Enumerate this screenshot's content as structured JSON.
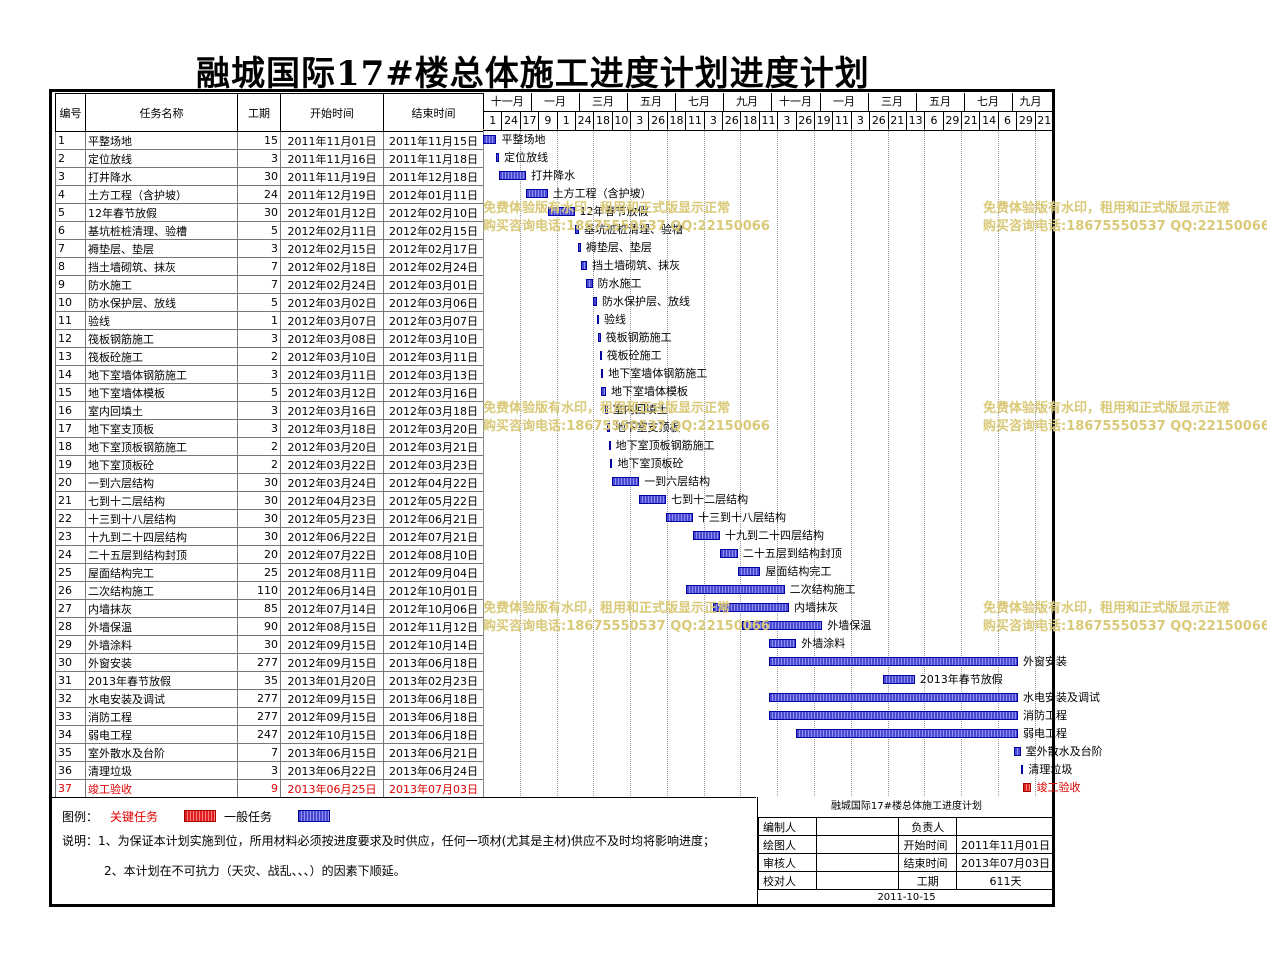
{
  "title": "融城国际17#楼总体施工进度计划进度计划",
  "headers": {
    "no": "编号",
    "name": "任务名称",
    "dur": "工期",
    "start": "开始时间",
    "end": "结束时间"
  },
  "months": [
    "十一月",
    "一月",
    "三月",
    "五月",
    "七月",
    "九月",
    "十一月",
    "一月",
    "三月",
    "五月",
    "七月",
    "九月"
  ],
  "days": [
    "1",
    "24",
    "17",
    "9",
    "1",
    "24",
    "18",
    "10",
    "3",
    "26",
    "18",
    "11",
    "3",
    "26",
    "18",
    "11",
    "3",
    "26",
    "19",
    "11",
    "3",
    "26",
    "21",
    "13",
    "6",
    "29",
    "21",
    "14",
    "6",
    "29",
    "21"
  ],
  "tasks": [
    {
      "no": "1",
      "name": "平整场地",
      "dur": "15",
      "start": "2011年11月01日",
      "end": "2011年11月15日",
      "crit": false
    },
    {
      "no": "2",
      "name": "定位放线",
      "dur": "3",
      "start": "2011年11月16日",
      "end": "2011年11月18日",
      "crit": false
    },
    {
      "no": "3",
      "name": "打井降水",
      "dur": "30",
      "start": "2011年11月19日",
      "end": "2011年12月18日",
      "crit": false
    },
    {
      "no": "4",
      "name": "土方工程（含护坡）",
      "dur": "24",
      "start": "2011年12月19日",
      "end": "2012年01月11日",
      "crit": false
    },
    {
      "no": "5",
      "name": "12年春节放假",
      "dur": "30",
      "start": "2012年01月12日",
      "end": "2012年02月10日",
      "crit": false
    },
    {
      "no": "6",
      "name": "基坑桩桩清理、验槽",
      "dur": "5",
      "start": "2012年02月11日",
      "end": "2012年02月15日",
      "crit": false
    },
    {
      "no": "7",
      "name": "褥垫层、垫层",
      "dur": "3",
      "start": "2012年02月15日",
      "end": "2012年02月17日",
      "crit": false
    },
    {
      "no": "8",
      "name": "挡土墙砌筑、抹灰",
      "dur": "7",
      "start": "2012年02月18日",
      "end": "2012年02月24日",
      "crit": false
    },
    {
      "no": "9",
      "name": "防水施工",
      "dur": "7",
      "start": "2012年02月24日",
      "end": "2012年03月01日",
      "crit": false
    },
    {
      "no": "10",
      "name": "防水保护层、放线",
      "dur": "5",
      "start": "2012年03月02日",
      "end": "2012年03月06日",
      "crit": false
    },
    {
      "no": "11",
      "name": "验线",
      "dur": "1",
      "start": "2012年03月07日",
      "end": "2012年03月07日",
      "crit": false
    },
    {
      "no": "12",
      "name": "筏板钢筋施工",
      "dur": "3",
      "start": "2012年03月08日",
      "end": "2012年03月10日",
      "crit": false
    },
    {
      "no": "13",
      "name": "筏板砼施工",
      "dur": "2",
      "start": "2012年03月10日",
      "end": "2012年03月11日",
      "crit": false
    },
    {
      "no": "14",
      "name": "地下室墙体钢筋施工",
      "dur": "3",
      "start": "2012年03月11日",
      "end": "2012年03月13日",
      "crit": false
    },
    {
      "no": "15",
      "name": "地下室墙体模板",
      "dur": "5",
      "start": "2012年03月12日",
      "end": "2012年03月16日",
      "crit": false
    },
    {
      "no": "16",
      "name": "室内回填土",
      "dur": "3",
      "start": "2012年03月16日",
      "end": "2012年03月18日",
      "crit": false
    },
    {
      "no": "17",
      "name": "地下室支顶板",
      "dur": "3",
      "start": "2012年03月18日",
      "end": "2012年03月20日",
      "crit": false
    },
    {
      "no": "18",
      "name": "地下室顶板钢筋施工",
      "dur": "2",
      "start": "2012年03月20日",
      "end": "2012年03月21日",
      "crit": false
    },
    {
      "no": "19",
      "name": "地下室顶板砼",
      "dur": "2",
      "start": "2012年03月22日",
      "end": "2012年03月23日",
      "crit": false
    },
    {
      "no": "20",
      "name": "一到六层结构",
      "dur": "30",
      "start": "2012年03月24日",
      "end": "2012年04月22日",
      "crit": false
    },
    {
      "no": "21",
      "name": "七到十二层结构",
      "dur": "30",
      "start": "2012年04月23日",
      "end": "2012年05月22日",
      "crit": false
    },
    {
      "no": "22",
      "name": "十三到十八层结构",
      "dur": "30",
      "start": "2012年05月23日",
      "end": "2012年06月21日",
      "crit": false
    },
    {
      "no": "23",
      "name": "十九到二十四层结构",
      "dur": "30",
      "start": "2012年06月22日",
      "end": "2012年07月21日",
      "crit": false
    },
    {
      "no": "24",
      "name": "二十五层到结构封顶",
      "dur": "20",
      "start": "2012年07月22日",
      "end": "2012年08月10日",
      "crit": false
    },
    {
      "no": "25",
      "name": "屋面结构完工",
      "dur": "25",
      "start": "2012年08月11日",
      "end": "2012年09月04日",
      "crit": false
    },
    {
      "no": "26",
      "name": "二次结构施工",
      "dur": "110",
      "start": "2012年06月14日",
      "end": "2012年10月01日",
      "crit": false
    },
    {
      "no": "27",
      "name": "内墙抹灰",
      "dur": "85",
      "start": "2012年07月14日",
      "end": "2012年10月06日",
      "crit": false
    },
    {
      "no": "28",
      "name": "外墙保温",
      "dur": "90",
      "start": "2012年08月15日",
      "end": "2012年11月12日",
      "crit": false
    },
    {
      "no": "29",
      "name": "外墙涂料",
      "dur": "30",
      "start": "2012年09月15日",
      "end": "2012年10月14日",
      "crit": false
    },
    {
      "no": "30",
      "name": "外窗安装",
      "dur": "277",
      "start": "2012年09月15日",
      "end": "2013年06月18日",
      "crit": false
    },
    {
      "no": "31",
      "name": "2013年春节放假",
      "dur": "35",
      "start": "2013年01月20日",
      "end": "2013年02月23日",
      "crit": false
    },
    {
      "no": "32",
      "name": "水电安装及调试",
      "dur": "277",
      "start": "2012年09月15日",
      "end": "2013年06月18日",
      "crit": false
    },
    {
      "no": "33",
      "name": "消防工程",
      "dur": "277",
      "start": "2012年09月15日",
      "end": "2013年06月18日",
      "crit": false
    },
    {
      "no": "34",
      "name": "弱电工程",
      "dur": "247",
      "start": "2012年10月15日",
      "end": "2013年06月18日",
      "crit": false
    },
    {
      "no": "35",
      "name": "室外散水及台阶",
      "dur": "7",
      "start": "2013年06月15日",
      "end": "2013年06月21日",
      "crit": false
    },
    {
      "no": "36",
      "name": "清理垃圾",
      "dur": "3",
      "start": "2013年06月22日",
      "end": "2013年06月24日",
      "crit": false
    },
    {
      "no": "37",
      "name": "竣工验收",
      "dur": "9",
      "start": "2013年06月25日",
      "end": "2013年07月03日",
      "crit": true
    }
  ],
  "watermark": {
    "line1": "免费体验版有水印，租用和正式版显示正常",
    "line2": "购买咨询电话:18675550537 QQ:22150066"
  },
  "legend": {
    "label": "图例：",
    "critical": "关键任务",
    "normal": "一般任务",
    "note1": "说明：1、为保证本计划实施到位，所用材料必须按进度要求及时供应，任何一项材(尤其是主材)供应不及时均将影响进度；",
    "note2": "2、本计划在不可抗力（天灾、战乱、、、）的因素下顺延。"
  },
  "info": {
    "title": "融城国际17#楼总体施工进度计划",
    "editor_label": "编制人",
    "responsible_label": "负责人",
    "drawer_label": "绘图人",
    "start_label": "开始时间",
    "start_value": "2011年11月01日",
    "reviewer_label": "审核人",
    "end_label": "结束时间",
    "end_value": "2013年07月03日",
    "checker_label": "校对人",
    "duration_label": "工期",
    "duration_value": "611天",
    "date": "2011-10-15"
  },
  "colors": {
    "critical": "#e02020",
    "normal": "#4a4ad0",
    "watermark": "#d9c978"
  }
}
